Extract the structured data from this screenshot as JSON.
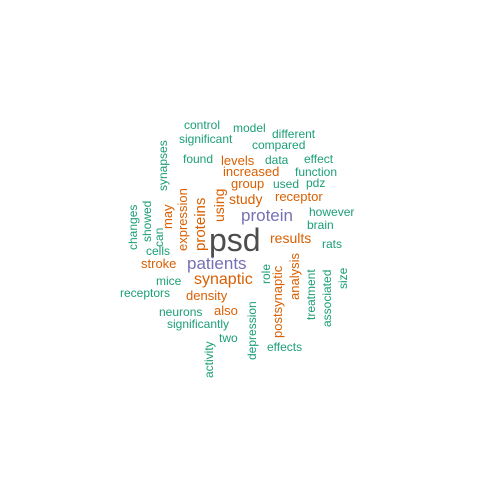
{
  "colors": {
    "dominant": "#4d4d4d",
    "purple": "#7570b3",
    "orange": "#d95f02",
    "green": "#1b9e77"
  },
  "words": [
    {
      "text": "psd",
      "color": "dominant"
    },
    {
      "text": "protein",
      "color": "purple"
    },
    {
      "text": "patients",
      "color": "purple"
    },
    {
      "text": "synaptic",
      "color": "orange"
    },
    {
      "text": "study",
      "color": "orange"
    },
    {
      "text": "results",
      "color": "orange"
    },
    {
      "text": "proteins",
      "color": "orange"
    },
    {
      "text": "using",
      "color": "orange"
    },
    {
      "text": "expression",
      "color": "orange"
    },
    {
      "text": "density",
      "color": "orange"
    },
    {
      "text": "postsynaptic",
      "color": "orange"
    },
    {
      "text": "analysis",
      "color": "orange"
    },
    {
      "text": "stroke",
      "color": "orange"
    },
    {
      "text": "may",
      "color": "orange"
    },
    {
      "text": "increased",
      "color": "orange"
    },
    {
      "text": "group",
      "color": "orange"
    },
    {
      "text": "levels",
      "color": "orange"
    },
    {
      "text": "receptor",
      "color": "orange"
    },
    {
      "text": "also",
      "color": "orange"
    },
    {
      "text": "control",
      "color": "green"
    },
    {
      "text": "model",
      "color": "green"
    },
    {
      "text": "different",
      "color": "green"
    },
    {
      "text": "significant",
      "color": "green"
    },
    {
      "text": "compared",
      "color": "green"
    },
    {
      "text": "found",
      "color": "green"
    },
    {
      "text": "data",
      "color": "green"
    },
    {
      "text": "effect",
      "color": "green"
    },
    {
      "text": "function",
      "color": "green"
    },
    {
      "text": "used",
      "color": "green"
    },
    {
      "text": "pdz",
      "color": "green"
    },
    {
      "text": "however",
      "color": "green"
    },
    {
      "text": "brain",
      "color": "green"
    },
    {
      "text": "rats",
      "color": "green"
    },
    {
      "text": "synapses",
      "color": "green"
    },
    {
      "text": "changes",
      "color": "green"
    },
    {
      "text": "showed",
      "color": "green"
    },
    {
      "text": "can",
      "color": "green"
    },
    {
      "text": "cells",
      "color": "green"
    },
    {
      "text": "mice",
      "color": "green"
    },
    {
      "text": "receptors",
      "color": "green"
    },
    {
      "text": "neurons",
      "color": "green"
    },
    {
      "text": "significantly",
      "color": "green"
    },
    {
      "text": "two",
      "color": "green"
    },
    {
      "text": "activity",
      "color": "green"
    },
    {
      "text": "depression",
      "color": "green"
    },
    {
      "text": "role",
      "color": "green"
    },
    {
      "text": "effects",
      "color": "green"
    },
    {
      "text": "treatment",
      "color": "green"
    },
    {
      "text": "associated",
      "color": "green"
    },
    {
      "text": "size",
      "color": "green"
    }
  ]
}
